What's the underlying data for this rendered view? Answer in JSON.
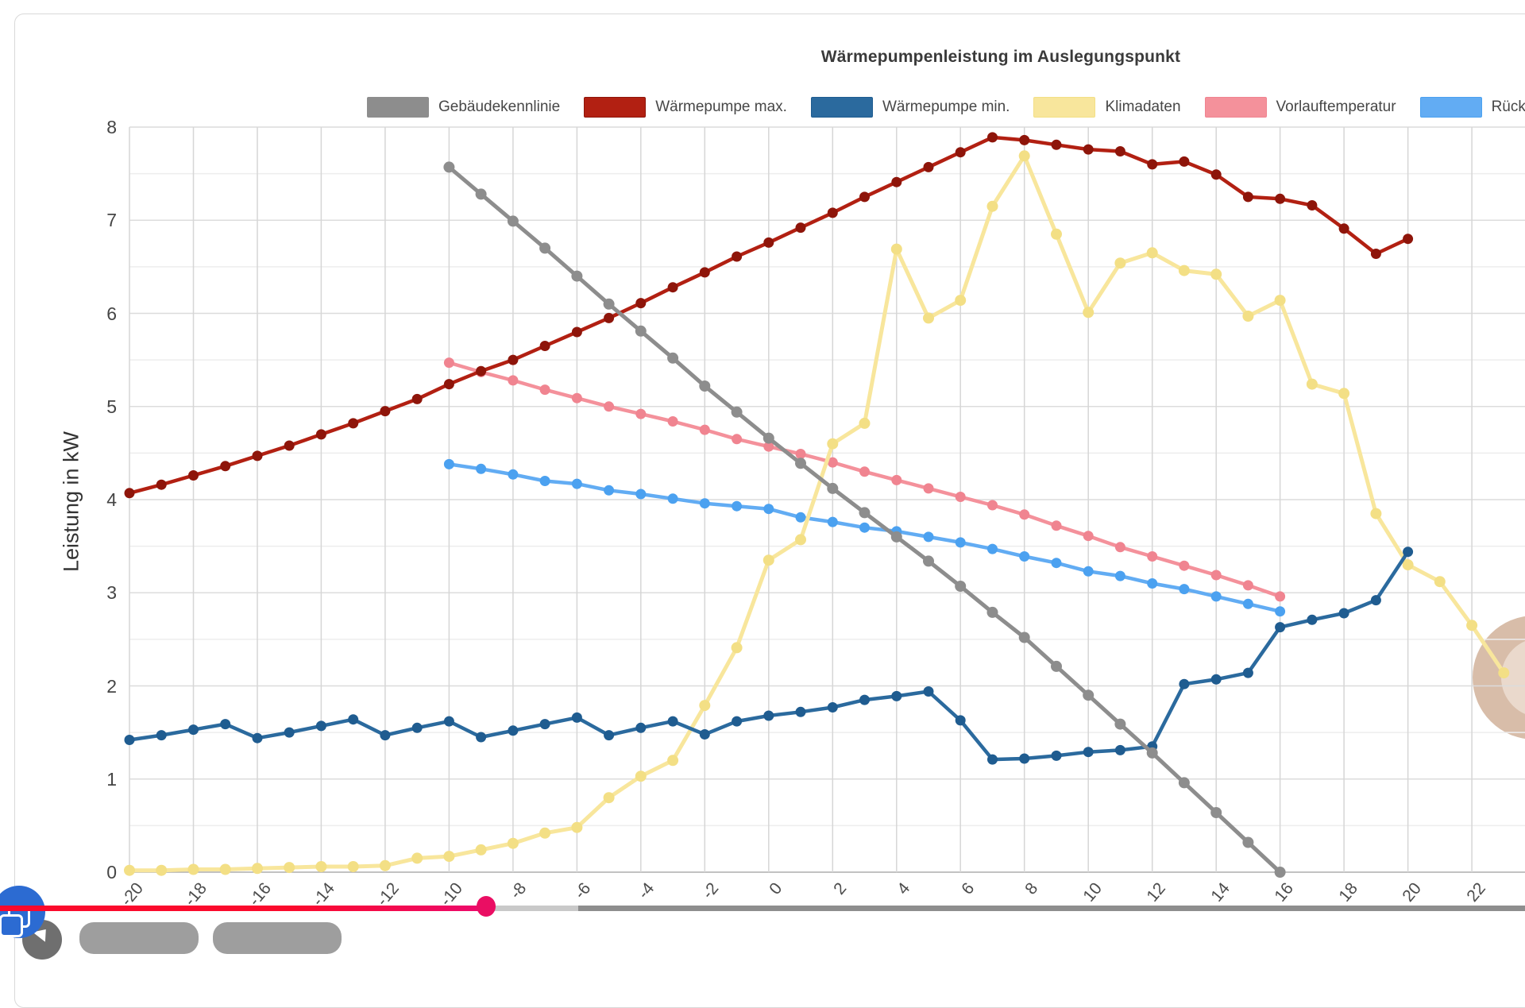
{
  "page": {
    "window_title": "Wärmepumpenleistung im Auslegungspunkt"
  },
  "chart_data": {
    "type": "line",
    "title": "Wärmepumpenleistung im Auslegungspunkt",
    "xlabel": "",
    "ylabel": "Leistung in kW",
    "xlim": [
      -20,
      23.6
    ],
    "ylim": [
      0,
      8
    ],
    "x_ticks": [
      -20,
      -18,
      -16,
      -14,
      -12,
      -10,
      -8,
      -6,
      -4,
      -2,
      0,
      2,
      4,
      6,
      8,
      10,
      12,
      14,
      16,
      18,
      20,
      22
    ],
    "y_ticks": [
      0,
      1,
      2,
      3,
      4,
      5,
      6,
      7,
      8
    ],
    "grid": true,
    "grid_half_steps": true,
    "legend_position": "top",
    "series": [
      {
        "name": "Gebäudekennlinie",
        "color": "#8d8d8d",
        "point_color": "#8d8d8d",
        "line_width": 5,
        "x": [
          -10,
          -9,
          -8,
          -7,
          -6,
          -5,
          -4,
          -3,
          -2,
          -1,
          0,
          1,
          2,
          3,
          4,
          5,
          6,
          7,
          8,
          9,
          10,
          11,
          12,
          13,
          14,
          15,
          16
        ],
        "values": [
          7.57,
          7.28,
          6.99,
          6.7,
          6.4,
          6.1,
          5.81,
          5.52,
          5.22,
          4.94,
          4.66,
          4.39,
          4.12,
          3.86,
          3.6,
          3.34,
          3.07,
          2.79,
          2.52,
          2.21,
          1.9,
          1.59,
          1.28,
          0.96,
          0.64,
          0.32,
          0.0
        ]
      },
      {
        "name": "Wärmepumpe max.",
        "color": "#b22012",
        "point_color": "#8e150a",
        "line_width": 4.5,
        "x": [
          -20,
          -19,
          -18,
          -17,
          -16,
          -15,
          -14,
          -13,
          -12,
          -11,
          -10,
          -9,
          -8,
          -7,
          -6,
          -5,
          -4,
          -3,
          -2,
          -1,
          0,
          1,
          2,
          3,
          4,
          5,
          6,
          7,
          8,
          9,
          10,
          11,
          12,
          13,
          14,
          15,
          16,
          17,
          18,
          19,
          20
        ],
        "values": [
          4.07,
          4.16,
          4.26,
          4.36,
          4.47,
          4.58,
          4.7,
          4.82,
          4.95,
          5.08,
          5.24,
          5.38,
          5.5,
          5.65,
          5.8,
          5.95,
          6.11,
          6.28,
          6.44,
          6.61,
          6.76,
          6.92,
          7.08,
          7.25,
          7.41,
          7.57,
          7.73,
          7.89,
          7.86,
          7.81,
          7.76,
          7.74,
          7.6,
          7.63,
          7.49,
          7.25,
          7.23,
          7.16,
          6.91,
          6.64,
          6.8
        ]
      },
      {
        "name": "Wärmepumpe min.",
        "color": "#2b6a9e",
        "point_color": "#1f5c90",
        "line_width": 4.5,
        "x": [
          -20,
          -19,
          -18,
          -17,
          -16,
          -15,
          -14,
          -13,
          -12,
          -11,
          -10,
          -9,
          -8,
          -7,
          -6,
          -5,
          -4,
          -3,
          -2,
          -1,
          0,
          1,
          2,
          3,
          4,
          5,
          6,
          7,
          8,
          9,
          10,
          11,
          12,
          13,
          14,
          15,
          16,
          17,
          18,
          19,
          20
        ],
        "values": [
          1.42,
          1.47,
          1.53,
          1.59,
          1.44,
          1.5,
          1.57,
          1.64,
          1.47,
          1.55,
          1.62,
          1.45,
          1.52,
          1.59,
          1.66,
          1.47,
          1.55,
          1.62,
          1.48,
          1.62,
          1.68,
          1.72,
          1.77,
          1.85,
          1.89,
          1.94,
          1.63,
          1.21,
          1.22,
          1.25,
          1.29,
          1.31,
          1.35,
          2.02,
          2.07,
          2.14,
          2.63,
          2.71,
          2.78,
          2.92,
          3.44
        ]
      },
      {
        "name": "Klimadaten",
        "color": "#f8e69c",
        "point_color": "#f3df85",
        "line_width": 5,
        "x": [
          -20,
          -19,
          -18,
          -17,
          -16,
          -15,
          -14,
          -13,
          -12,
          -11,
          -10,
          -9,
          -8,
          -7,
          -6,
          -5,
          -4,
          -3,
          -2,
          -1,
          0,
          1,
          2,
          3,
          4,
          5,
          6,
          7,
          8,
          9,
          10,
          11,
          12,
          13,
          14,
          15,
          16,
          17,
          18,
          19,
          20,
          21,
          22,
          23
        ],
        "values": [
          0.02,
          0.02,
          0.03,
          0.03,
          0.04,
          0.05,
          0.06,
          0.06,
          0.07,
          0.15,
          0.17,
          0.24,
          0.31,
          0.42,
          0.48,
          0.8,
          1.03,
          1.2,
          1.79,
          2.41,
          3.35,
          3.57,
          4.6,
          4.82,
          6.69,
          5.95,
          6.14,
          7.15,
          7.69,
          6.85,
          6.01,
          6.54,
          6.65,
          6.46,
          6.42,
          5.97,
          6.14,
          5.24,
          5.14,
          3.85,
          3.3,
          3.12,
          2.65,
          2.14
        ]
      },
      {
        "name": "Vorlauftemperatur",
        "color": "#f4919b",
        "point_color": "#f08490",
        "line_width": 4.5,
        "x": [
          -10,
          -9,
          -8,
          -7,
          -6,
          -5,
          -4,
          -3,
          -2,
          -1,
          0,
          1,
          2,
          3,
          4,
          5,
          6,
          7,
          8,
          9,
          10,
          11,
          12,
          13,
          14,
          15,
          16
        ],
        "values": [
          5.47,
          5.37,
          5.28,
          5.18,
          5.09,
          5.0,
          4.92,
          4.84,
          4.75,
          4.65,
          4.57,
          4.49,
          4.4,
          4.3,
          4.21,
          4.12,
          4.03,
          3.94,
          3.84,
          3.72,
          3.61,
          3.49,
          3.39,
          3.29,
          3.19,
          3.08,
          2.96
        ]
      },
      {
        "name": "Rücklauftemperatur",
        "color": "#62acf3",
        "point_color": "#4ba1f0",
        "line_width": 4.5,
        "x": [
          -10,
          -9,
          -8,
          -7,
          -6,
          -5,
          -4,
          -3,
          -2,
          -1,
          0,
          1,
          2,
          3,
          4,
          5,
          6,
          7,
          8,
          9,
          10,
          11,
          12,
          13,
          14,
          15,
          16
        ],
        "values": [
          4.38,
          4.33,
          4.27,
          4.2,
          4.17,
          4.1,
          4.06,
          4.01,
          3.96,
          3.93,
          3.9,
          3.81,
          3.76,
          3.7,
          3.66,
          3.6,
          3.54,
          3.47,
          3.39,
          3.32,
          3.23,
          3.18,
          3.1,
          3.04,
          2.96,
          2.88,
          2.8
        ]
      }
    ]
  },
  "slider": {
    "progress_percent": 31.9,
    "buffer_percent": 37.9,
    "progress_color_start": "#fb0a2c",
    "progress_color_end": "#ec0a6e",
    "buffer_color": "#c9c9c9",
    "track_color": "#8e8e8e",
    "handle_color": "#ea0e63"
  },
  "decorations": {
    "blob_color_outer": "#d8bda9",
    "blob_color_inner": "#ead9cc",
    "logo_icon": "overlapping-frames-icon"
  }
}
